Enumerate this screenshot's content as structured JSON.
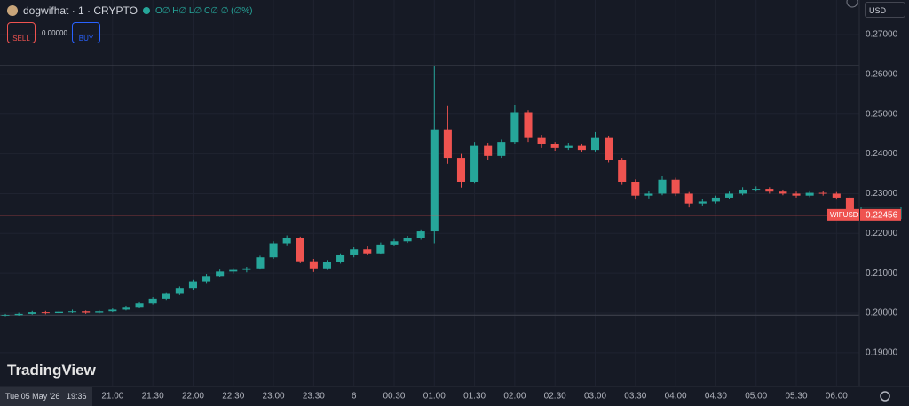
{
  "header": {
    "symbol": "dogwifhat · 1 · CRYPTO",
    "ohlc": "O∅ H∅ L∅ C∅ ∅ (∅%)",
    "sell": "SELL",
    "spread": "0.00000",
    "buy": "BUY",
    "currency": "USD",
    "logo": "TradingView",
    "date": "Tue 05 May '26",
    "time": "19:36"
  },
  "chart_data": {
    "type": "candlestick",
    "grid": true,
    "up_color": "#26a69a",
    "down_color": "#ef5350",
    "xlim": [
      1176,
      1817
    ],
    "ylim": [
      0.1815,
      0.2787
    ],
    "xticks": [
      {
        "value": 1260,
        "label": "21:00"
      },
      {
        "value": 1290,
        "label": "21:30"
      },
      {
        "value": 1320,
        "label": "22:00"
      },
      {
        "value": 1350,
        "label": "22:30"
      },
      {
        "value": 1380,
        "label": "23:00"
      },
      {
        "value": 1410,
        "label": "23:30"
      },
      {
        "value": 1440,
        "label": "6"
      },
      {
        "value": 1470,
        "label": "00:30"
      },
      {
        "value": 1500,
        "label": "01:00"
      },
      {
        "value": 1530,
        "label": "01:30"
      },
      {
        "value": 1560,
        "label": "02:00"
      },
      {
        "value": 1590,
        "label": "02:30"
      },
      {
        "value": 1620,
        "label": "03:00"
      },
      {
        "value": 1650,
        "label": "03:30"
      },
      {
        "value": 1680,
        "label": "04:00"
      },
      {
        "value": 1710,
        "label": "04:30"
      },
      {
        "value": 1740,
        "label": "05:00"
      },
      {
        "value": 1770,
        "label": "05:30"
      },
      {
        "value": 1800,
        "label": "06:00"
      }
    ],
    "yticks": [
      {
        "value": 0.19,
        "label": "0.19000"
      },
      {
        "value": 0.2,
        "label": "0.20000"
      },
      {
        "value": 0.21,
        "label": "0.21000"
      },
      {
        "value": 0.22,
        "label": "0.22000"
      },
      {
        "value": 0.23,
        "label": "0.23000"
      },
      {
        "value": 0.24,
        "label": "0.24000"
      },
      {
        "value": 0.25,
        "label": "0.25000"
      },
      {
        "value": 0.26,
        "label": "0.26000"
      },
      {
        "value": 0.27,
        "label": "0.27000"
      }
    ],
    "high_line": 0.2622,
    "low_line": 0.1995,
    "bid_price": 0.22505,
    "last_price": 0.22456,
    "last_name": "WIFUSD",
    "x": [
      1180,
      1190,
      1200,
      1210,
      1220,
      1230,
      1240,
      1250,
      1260,
      1270,
      1280,
      1290,
      1300,
      1310,
      1320,
      1330,
      1340,
      1350,
      1360,
      1370,
      1380,
      1390,
      1400,
      1410,
      1420,
      1430,
      1440,
      1450,
      1460,
      1470,
      1480,
      1490,
      1500,
      1510,
      1520,
      1530,
      1540,
      1550,
      1560,
      1570,
      1580,
      1590,
      1600,
      1610,
      1620,
      1630,
      1640,
      1650,
      1660,
      1670,
      1680,
      1690,
      1700,
      1710,
      1720,
      1730,
      1740,
      1750,
      1760,
      1770,
      1780,
      1790,
      1800,
      1810
    ],
    "open": [
      0.1992,
      0.1995,
      0.1998,
      0.2002,
      0.2,
      0.2003,
      0.2004,
      0.2001,
      0.2004,
      0.2008,
      0.2015,
      0.2024,
      0.2036,
      0.2048,
      0.2062,
      0.2079,
      0.2093,
      0.2104,
      0.2108,
      0.2112,
      0.214,
      0.2175,
      0.2188,
      0.213,
      0.2112,
      0.2128,
      0.2145,
      0.216,
      0.215,
      0.2172,
      0.218,
      0.2188,
      0.2205,
      0.246,
      0.239,
      0.233,
      0.242,
      0.2395,
      0.243,
      0.2505,
      0.244,
      0.2425,
      0.2415,
      0.242,
      0.241,
      0.244,
      0.2385,
      0.233,
      0.2295,
      0.23,
      0.2335,
      0.23,
      0.2275,
      0.228,
      0.229,
      0.23,
      0.231,
      0.2312,
      0.2305,
      0.23,
      0.2295,
      0.2302,
      0.23,
      0.229
    ],
    "high": [
      0.1998,
      0.2001,
      0.2005,
      0.2005,
      0.2006,
      0.2008,
      0.2006,
      0.2007,
      0.2011,
      0.2018,
      0.2027,
      0.204,
      0.2052,
      0.2066,
      0.2083,
      0.2098,
      0.2109,
      0.2113,
      0.2116,
      0.2144,
      0.218,
      0.2195,
      0.2192,
      0.2136,
      0.2133,
      0.215,
      0.2165,
      0.2167,
      0.2177,
      0.2186,
      0.2194,
      0.221,
      0.2622,
      0.252,
      0.24,
      0.243,
      0.2428,
      0.2436,
      0.2522,
      0.251,
      0.2448,
      0.243,
      0.2428,
      0.2426,
      0.2455,
      0.2446,
      0.239,
      0.2336,
      0.2306,
      0.2345,
      0.234,
      0.2304,
      0.2286,
      0.2295,
      0.2305,
      0.2316,
      0.2318,
      0.2316,
      0.231,
      0.2305,
      0.2308,
      0.2307,
      0.2304,
      0.2294
    ],
    "low": [
      0.199,
      0.1993,
      0.1996,
      0.1997,
      0.1998,
      0.2,
      0.1998,
      0.1999,
      0.2002,
      0.2006,
      0.2012,
      0.2021,
      0.2033,
      0.2045,
      0.2058,
      0.2075,
      0.209,
      0.2099,
      0.2102,
      0.2109,
      0.2136,
      0.217,
      0.2125,
      0.2103,
      0.2108,
      0.2124,
      0.214,
      0.2145,
      0.2147,
      0.2168,
      0.2176,
      0.2184,
      0.2175,
      0.2375,
      0.2315,
      0.2325,
      0.2385,
      0.239,
      0.2425,
      0.243,
      0.2415,
      0.2408,
      0.241,
      0.2404,
      0.2406,
      0.2378,
      0.2322,
      0.2285,
      0.2288,
      0.2296,
      0.2294,
      0.2265,
      0.227,
      0.2275,
      0.2286,
      0.2296,
      0.2305,
      0.23,
      0.2296,
      0.229,
      0.2291,
      0.2295,
      0.2285,
      0.2244
    ],
    "close": [
      0.1995,
      0.1998,
      0.2002,
      0.2,
      0.2003,
      0.2004,
      0.2001,
      0.2004,
      0.2008,
      0.2015,
      0.2024,
      0.2036,
      0.2048,
      0.2062,
      0.2079,
      0.2093,
      0.2104,
      0.2108,
      0.2112,
      0.214,
      0.2175,
      0.2188,
      0.213,
      0.2112,
      0.2128,
      0.2145,
      0.216,
      0.215,
      0.2172,
      0.218,
      0.2188,
      0.2205,
      0.246,
      0.239,
      0.233,
      0.242,
      0.2395,
      0.243,
      0.2505,
      0.244,
      0.2425,
      0.2415,
      0.242,
      0.241,
      0.244,
      0.2385,
      0.233,
      0.2295,
      0.23,
      0.2335,
      0.23,
      0.2275,
      0.228,
      0.229,
      0.23,
      0.231,
      0.2312,
      0.2305,
      0.23,
      0.2295,
      0.2302,
      0.23,
      0.229,
      0.2246
    ]
  }
}
